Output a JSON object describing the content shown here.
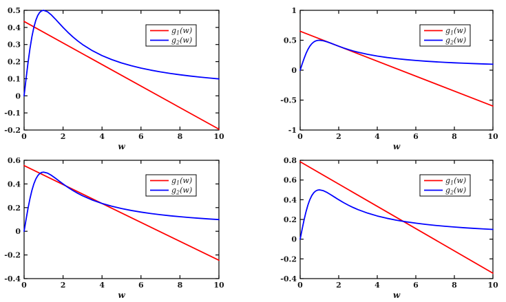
{
  "figure": {
    "background": "#ffffff",
    "axis_color": "#000000",
    "tick_label_color": "#1a1a1a"
  },
  "colors": {
    "g1": "#ff0000",
    "g2": "#0000ff",
    "legend_border": "#000000",
    "legend_bg": "#ffffff"
  },
  "legend": {
    "entries": [
      {
        "key": "g1",
        "display": "g1(w)",
        "base": "g",
        "sub": "1",
        "rest": "(w)",
        "color": "#ff0000"
      },
      {
        "key": "g2",
        "display": "g2(w)",
        "base": "g",
        "sub": "2",
        "rest": "(w)",
        "color": "#0000ff"
      }
    ],
    "position": "upper right"
  },
  "chart_data": [
    {
      "id": "top-left",
      "type": "line",
      "title": "",
      "xlabel": "w",
      "ylabel": "",
      "xlim": [
        0,
        10
      ],
      "xticks": [
        0,
        2,
        4,
        6,
        8,
        10
      ],
      "ylim": [
        -0.2,
        0.5
      ],
      "yticks": [
        -0.2,
        -0.1,
        0,
        0.1,
        0.2,
        0.3,
        0.4,
        0.5
      ],
      "grid": false,
      "legend_position": "upper right",
      "series": [
        {
          "name": "g1(w)",
          "color": "#ff0000",
          "x": [
            0,
            10
          ],
          "y": [
            0.435,
            -0.195
          ]
        },
        {
          "name": "g2(w)",
          "color": "#0000ff",
          "x": [
            0,
            0.1,
            0.2,
            0.3,
            0.4,
            0.5,
            0.6,
            0.7,
            0.8,
            0.9,
            1,
            1.2,
            1.4,
            1.6,
            1.8,
            2,
            2.25,
            2.5,
            2.75,
            3,
            3.5,
            4,
            4.5,
            5,
            5.5,
            6,
            6.5,
            7,
            7.5,
            8,
            8.5,
            9,
            9.5,
            10
          ],
          "y": [
            0,
            0.099,
            0.1923,
            0.2752,
            0.3448,
            0.4,
            0.4412,
            0.4698,
            0.4878,
            0.4972,
            0.5,
            0.4918,
            0.473,
            0.4494,
            0.4245,
            0.4,
            0.3711,
            0.3448,
            0.3212,
            0.3,
            0.2642,
            0.2353,
            0.2118,
            0.1923,
            0.176,
            0.1622,
            0.1503,
            0.14,
            0.131,
            0.1231,
            0.116,
            0.1098,
            0.1041,
            0.099
          ]
        }
      ]
    },
    {
      "id": "top-right",
      "type": "line",
      "title": "",
      "xlabel": "w",
      "ylabel": "",
      "xlim": [
        0,
        10
      ],
      "xticks": [
        0,
        2,
        4,
        6,
        8,
        10
      ],
      "ylim": [
        -1,
        1
      ],
      "yticks": [
        -1,
        -0.5,
        0,
        0.5,
        1
      ],
      "grid": false,
      "legend_position": "upper right",
      "series": [
        {
          "name": "g1(w)",
          "color": "#ff0000",
          "x": [
            0,
            10
          ],
          "y": [
            0.65,
            -0.6
          ]
        },
        {
          "name": "g2(w)",
          "color": "#0000ff",
          "x": [
            0,
            0.1,
            0.2,
            0.3,
            0.4,
            0.5,
            0.6,
            0.7,
            0.8,
            0.9,
            1,
            1.2,
            1.4,
            1.6,
            1.8,
            2,
            2.25,
            2.5,
            2.75,
            3,
            3.5,
            4,
            4.5,
            5,
            5.5,
            6,
            6.5,
            7,
            7.5,
            8,
            8.5,
            9,
            9.5,
            10
          ],
          "y": [
            0,
            0.099,
            0.1923,
            0.2752,
            0.3448,
            0.4,
            0.4412,
            0.4698,
            0.4878,
            0.4972,
            0.5,
            0.4918,
            0.473,
            0.4494,
            0.4245,
            0.4,
            0.3711,
            0.3448,
            0.3212,
            0.3,
            0.2642,
            0.2353,
            0.2118,
            0.1923,
            0.176,
            0.1622,
            0.1503,
            0.14,
            0.131,
            0.1231,
            0.116,
            0.1098,
            0.1041,
            0.099
          ]
        }
      ]
    },
    {
      "id": "bottom-left",
      "type": "line",
      "title": "",
      "xlabel": "w",
      "ylabel": "",
      "xlim": [
        0,
        10
      ],
      "xticks": [
        0,
        2,
        4,
        6,
        8,
        10
      ],
      "ylim": [
        -0.4,
        0.6
      ],
      "yticks": [
        -0.4,
        -0.2,
        0,
        0.2,
        0.4,
        0.6
      ],
      "grid": false,
      "legend_position": "upper right",
      "series": [
        {
          "name": "g1(w)",
          "color": "#ff0000",
          "x": [
            0,
            10
          ],
          "y": [
            0.555,
            -0.245
          ]
        },
        {
          "name": "g2(w)",
          "color": "#0000ff",
          "x": [
            0,
            0.1,
            0.2,
            0.3,
            0.4,
            0.5,
            0.6,
            0.7,
            0.8,
            0.9,
            1,
            1.2,
            1.4,
            1.6,
            1.8,
            2,
            2.25,
            2.5,
            2.75,
            3,
            3.5,
            4,
            4.5,
            5,
            5.5,
            6,
            6.5,
            7,
            7.5,
            8,
            8.5,
            9,
            9.5,
            10
          ],
          "y": [
            0,
            0.099,
            0.1923,
            0.2752,
            0.3448,
            0.4,
            0.4412,
            0.4698,
            0.4878,
            0.4972,
            0.5,
            0.4918,
            0.473,
            0.4494,
            0.4245,
            0.4,
            0.3711,
            0.3448,
            0.3212,
            0.3,
            0.2642,
            0.2353,
            0.2118,
            0.1923,
            0.176,
            0.1622,
            0.1503,
            0.14,
            0.131,
            0.1231,
            0.116,
            0.1098,
            0.1041,
            0.099
          ]
        }
      ]
    },
    {
      "id": "bottom-right",
      "type": "line",
      "title": "",
      "xlabel": "w",
      "ylabel": "",
      "xlim": [
        0,
        10
      ],
      "xticks": [
        0,
        2,
        4,
        6,
        8,
        10
      ],
      "ylim": [
        -0.4,
        0.8
      ],
      "yticks": [
        -0.4,
        -0.2,
        0,
        0.2,
        0.4,
        0.6,
        0.8
      ],
      "grid": false,
      "legend_position": "upper right",
      "series": [
        {
          "name": "g1(w)",
          "color": "#ff0000",
          "x": [
            0,
            10
          ],
          "y": [
            0.785,
            -0.345
          ]
        },
        {
          "name": "g2(w)",
          "color": "#0000ff",
          "x": [
            0,
            0.1,
            0.2,
            0.3,
            0.4,
            0.5,
            0.6,
            0.7,
            0.8,
            0.9,
            1,
            1.2,
            1.4,
            1.6,
            1.8,
            2,
            2.25,
            2.5,
            2.75,
            3,
            3.5,
            4,
            4.5,
            5,
            5.5,
            6,
            6.5,
            7,
            7.5,
            8,
            8.5,
            9,
            9.5,
            10
          ],
          "y": [
            0,
            0.099,
            0.1923,
            0.2752,
            0.3448,
            0.4,
            0.4412,
            0.4698,
            0.4878,
            0.4972,
            0.5,
            0.4918,
            0.473,
            0.4494,
            0.4245,
            0.4,
            0.3711,
            0.3448,
            0.3212,
            0.3,
            0.2642,
            0.2353,
            0.2118,
            0.1923,
            0.176,
            0.1622,
            0.1503,
            0.14,
            0.131,
            0.1231,
            0.116,
            0.1098,
            0.1041,
            0.099
          ]
        }
      ]
    }
  ]
}
